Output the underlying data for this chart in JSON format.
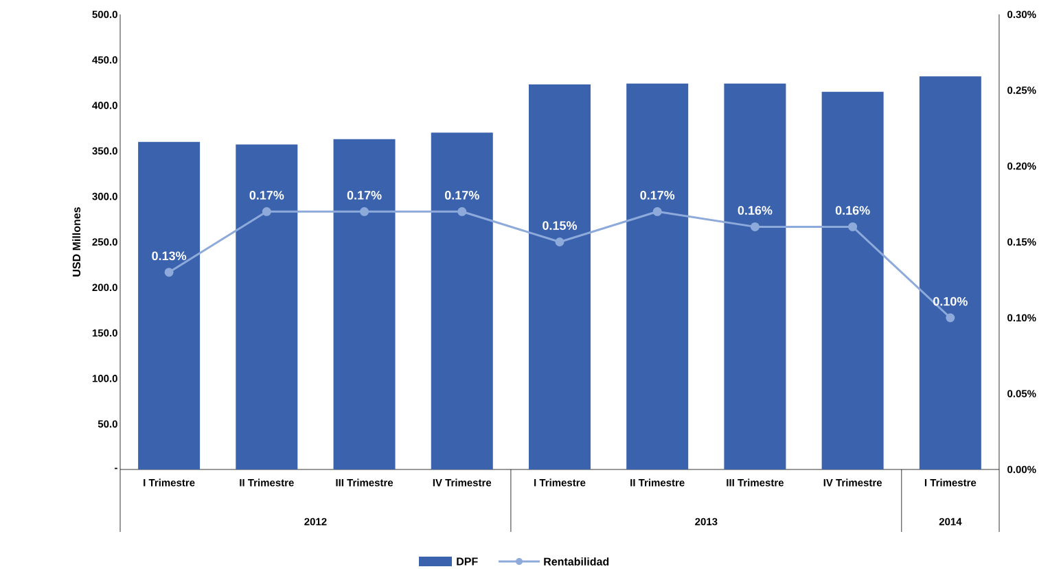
{
  "chart_data": {
    "type": "bar",
    "ylabel": "USD Millones",
    "legend": "bottom",
    "marker": "circle",
    "categories": [
      "I Trimestre",
      "II Trimestre",
      "III Trimestre",
      "IV Trimestre",
      "I Trimestre",
      "II Trimestre",
      "III Trimestre",
      "IV Trimestre",
      "I Trimestre"
    ],
    "annotations": [
      "2012",
      "2013",
      "2014"
    ],
    "ylim": [
      0,
      500
    ],
    "yticks": [
      {
        "value": 0,
        "label": "-"
      },
      {
        "value": 50,
        "label": "50.0"
      },
      {
        "value": 100,
        "label": "100.0"
      },
      {
        "value": 150,
        "label": "150.0"
      },
      {
        "value": 200,
        "label": "200.0"
      },
      {
        "value": 250,
        "label": "250.0"
      },
      {
        "value": 300,
        "label": "300.0"
      },
      {
        "value": 350,
        "label": "350.0"
      },
      {
        "value": 400,
        "label": "400.0"
      },
      {
        "value": 450,
        "label": "450.0"
      },
      {
        "value": 500,
        "label": "500.0"
      }
    ],
    "y2lim": [
      0,
      0.3
    ],
    "y2ticks": [
      {
        "value": 0,
        "label": "0.00%"
      },
      {
        "value": 0.05,
        "label": "0.05%"
      },
      {
        "value": 0.1,
        "label": "0.10%"
      },
      {
        "value": 0.15,
        "label": "0.15%"
      },
      {
        "value": 0.2,
        "label": "0.20%"
      },
      {
        "value": 0.25,
        "label": "0.25%"
      },
      {
        "value": 0.3,
        "label": "0.30%"
      }
    ],
    "series": [
      {
        "name": "DPF",
        "color": "#3a62ad",
        "values": [
          360,
          357,
          363,
          370,
          423,
          424,
          424,
          415,
          432
        ]
      },
      {
        "name": "Rentabilidad",
        "type": "line",
        "axis": "y2",
        "color": "#8eaadb",
        "values": [
          0.13,
          0.17,
          0.17,
          0.17,
          0.15,
          0.17,
          0.16,
          0.16,
          0.1
        ],
        "value_labels": [
          "0.13%",
          "0.17%",
          "0.17%",
          "0.17%",
          "0.15%",
          "0.17%",
          "0.16%",
          "0.16%",
          "0.10%"
        ]
      }
    ]
  }
}
